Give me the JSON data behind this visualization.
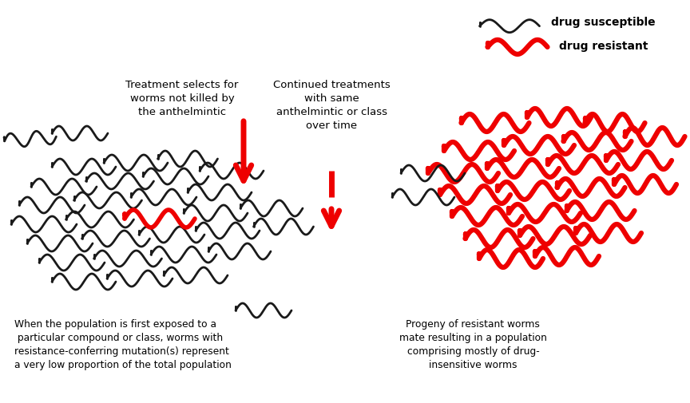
{
  "background_color": "#ffffff",
  "susceptible_color": "#1a1a1a",
  "resistant_color": "#ee0000",
  "text_color": "#000000",
  "label_susceptible": "drug susceptible",
  "label_resistant": "drug resistant",
  "text_left_top": "Treatment selects for\nworms not killed by\nthe anthelmintic",
  "text_middle_top": "Continued treatments\nwith same\nanthelmintic or class\nover time",
  "text_bottom_left": "When the population is first exposed to a\n particular compound or class, worms with\nresistance-conferring mutation(s) represent\na very low proportion of the total population",
  "text_bottom_right": "Progeny of resistant worms\nmate resulting in a population\ncomprising mostly of drug-\ninsensitive worms"
}
